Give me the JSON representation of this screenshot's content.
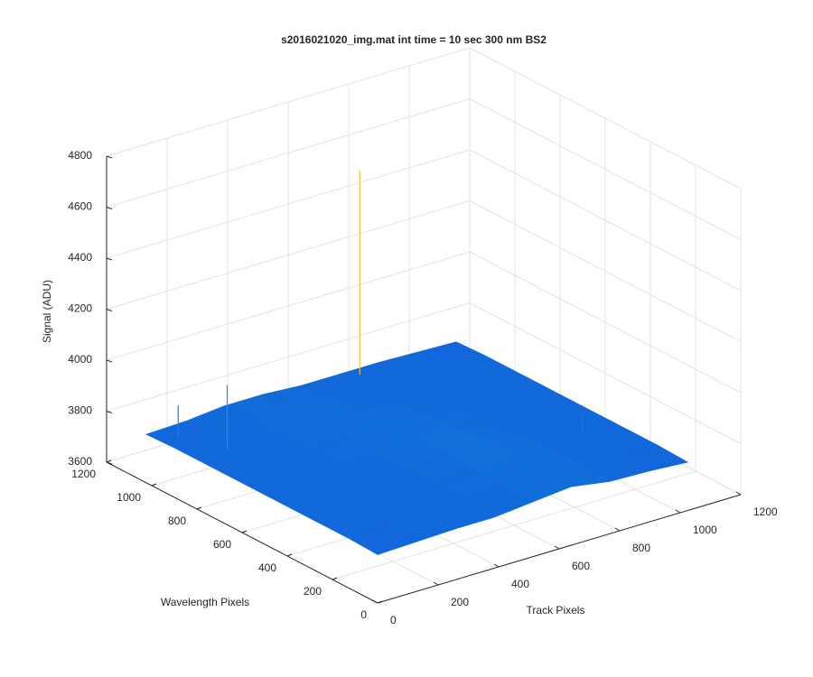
{
  "chart_data": {
    "type": "surface",
    "title": "s2016021020_img.mat int time = 10 sec  300 nm BS2",
    "xlabel": "Track Pixels",
    "ylabel": "Wavelength Pixels",
    "zlabel": "Signal (ADU)",
    "xlim": [
      0,
      1200
    ],
    "xticks": [
      0,
      200,
      400,
      600,
      800,
      1000,
      1200
    ],
    "ylim": [
      0,
      1200
    ],
    "yticks": [
      0,
      200,
      400,
      600,
      800,
      1000,
      1200
    ],
    "zlim": [
      3600,
      4800
    ],
    "zticks": [
      3600,
      3800,
      4000,
      4200,
      4400,
      4600,
      4800
    ],
    "grid": true,
    "colormap": [
      "#352a87",
      "#0f5cdd",
      "#1481d6",
      "#06a4ca",
      "#2eb7a4",
      "#87bf77",
      "#d1bb59",
      "#fec832",
      "#f9fb0e"
    ],
    "x": [
      0,
      128,
      256,
      384,
      512,
      640,
      768,
      896,
      1024
    ],
    "y": [
      0,
      128,
      256,
      384,
      512,
      640,
      768,
      896,
      1024
    ],
    "z": [
      [
        3790,
        3795,
        3800,
        3800,
        3815,
        3830,
        3805,
        3800,
        3790
      ],
      [
        3795,
        3800,
        3800,
        3805,
        3815,
        3835,
        3810,
        3800,
        3795
      ],
      [
        3795,
        3800,
        3800,
        3805,
        3820,
        3840,
        3810,
        3800,
        3795
      ],
      [
        3795,
        3800,
        3800,
        3810,
        3830,
        3835,
        3805,
        3800,
        3795
      ],
      [
        3795,
        3800,
        3805,
        3815,
        3835,
        3825,
        3800,
        3800,
        3795
      ],
      [
        3795,
        3800,
        3805,
        3820,
        3830,
        3815,
        3800,
        3800,
        3795
      ],
      [
        3795,
        3800,
        3810,
        3825,
        3820,
        3805,
        3800,
        3800,
        3795
      ],
      [
        3795,
        3800,
        3815,
        3820,
        3810,
        3800,
        3800,
        3800,
        3795
      ],
      [
        3790,
        3795,
        3810,
        3810,
        3800,
        3800,
        3800,
        3795,
        3790
      ]
    ],
    "spikes": {
      "x": [
        680,
        100,
        50,
        900
      ],
      "y": [
        990,
        800,
        950,
        300
      ],
      "z": [
        4600,
        4050,
        3920,
        3880
      ]
    }
  }
}
